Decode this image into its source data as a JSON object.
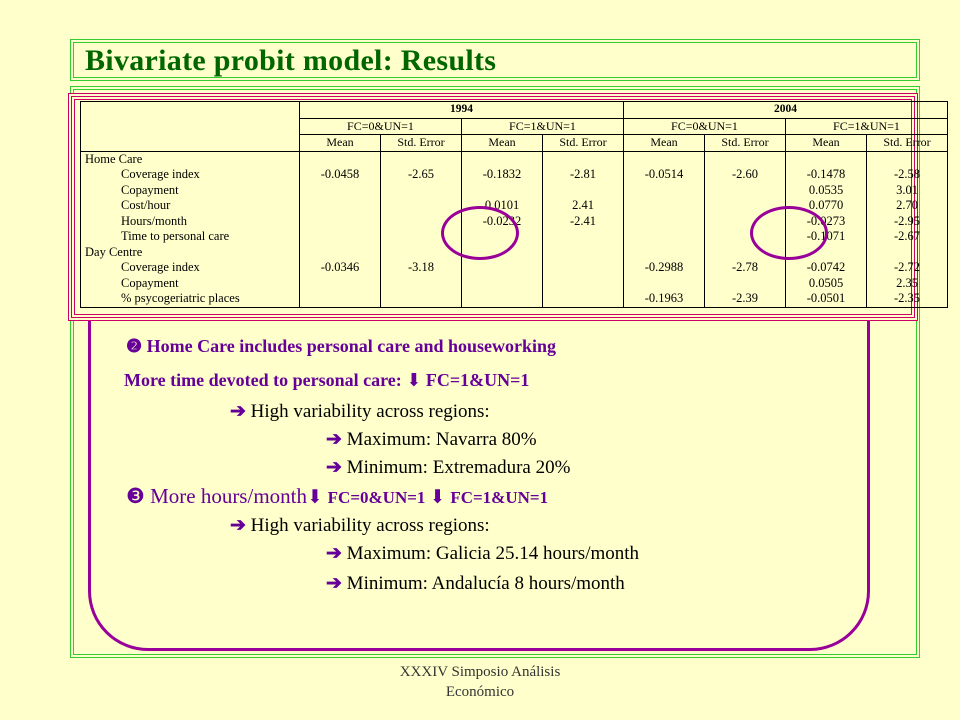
{
  "slide": {
    "title": "Bivariate probit model: Results",
    "footer_line1": "XXXIV Simposio Análisis",
    "footer_line2": "Económico"
  },
  "table": {
    "years": [
      "1994",
      "2004"
    ],
    "models": [
      "FC=0&UN=1",
      "FC=1&UN=1",
      "FC=0&UN=1",
      "FC=1&UN=1"
    ],
    "subheaders": [
      "Mean",
      "Std. Error",
      "Mean",
      "Std. Error",
      "Mean",
      "Std. Error",
      "Mean",
      "Std. Error"
    ],
    "rows": [
      {
        "label": "Home Care",
        "group": true,
        "cells": [
          "",
          "",
          "",
          "",
          "",
          "",
          "",
          ""
        ]
      },
      {
        "label": "Coverage index",
        "cells": [
          "-0.0458",
          "-2.65",
          "-0.1832",
          "-2.81",
          "-0.0514",
          "-2.60",
          "-0.1478",
          "-2.58"
        ]
      },
      {
        "label": "Copayment",
        "cells": [
          "",
          "",
          "",
          "",
          "",
          "",
          "0.0535",
          "3.01"
        ]
      },
      {
        "label": "Cost/hour",
        "cells": [
          "",
          "",
          "0.0101",
          "2.41",
          "",
          "",
          "0.0770",
          "2.70"
        ]
      },
      {
        "label": "Hours/month",
        "cells": [
          "",
          "",
          "-0.0232",
          "-2.41",
          "",
          "",
          "-0.0273",
          "-2.95"
        ]
      },
      {
        "label": "Time to personal care",
        "cells": [
          "",
          "",
          "",
          "",
          "",
          "",
          "-0.1071",
          "-2.67"
        ]
      },
      {
        "label": "Day Centre",
        "group": true,
        "cells": [
          "",
          "",
          "",
          "",
          "",
          "",
          "",
          ""
        ]
      },
      {
        "label": "Coverage index",
        "cells": [
          "-0.0346",
          "-3.18",
          "",
          "",
          "-0.2988",
          "-2.78",
          "-0.0742",
          "-2.72"
        ]
      },
      {
        "label": "Copayment",
        "cells": [
          "",
          "",
          "",
          "",
          "",
          "",
          "0.0505",
          "2.35"
        ]
      },
      {
        "label": "% psycogeriatric places",
        "cells": [
          "",
          "",
          "",
          "",
          "-0.1963",
          "-2.39",
          "-0.0501",
          "-2.35"
        ]
      }
    ]
  },
  "bullets": {
    "b2_icon": "❷",
    "b2_text": " Home Care includes personal care and houseworking",
    "b2_line2": "More time devoted to personal care: ",
    "b2_line2_tail": "FC=1&UN=1",
    "sub1": "High variability across regions:",
    "sub1_max": "Maximum: Navarra 80%",
    "sub1_min": "Minimum: Extremadura 20%",
    "b3_icon": "❸",
    "b3_text": " More hours/month",
    "b3_mid": "FC=0&UN=1 ",
    "b3_tail": "FC=1&UN=1",
    "sub2": "High variability across regions:",
    "sub2_max": "Maximum: Galicia 25.14 hours/month",
    "sub2_min": "Minimum: Andalucía 8 hours/month",
    "arrow_down": "⬇",
    "arrow_right": "➔"
  },
  "colors": {
    "background": "#ffffcc",
    "title": "#006600",
    "green_frame": "#33cc33",
    "purple": "#990099",
    "magenta_frame": "#cc0066"
  }
}
